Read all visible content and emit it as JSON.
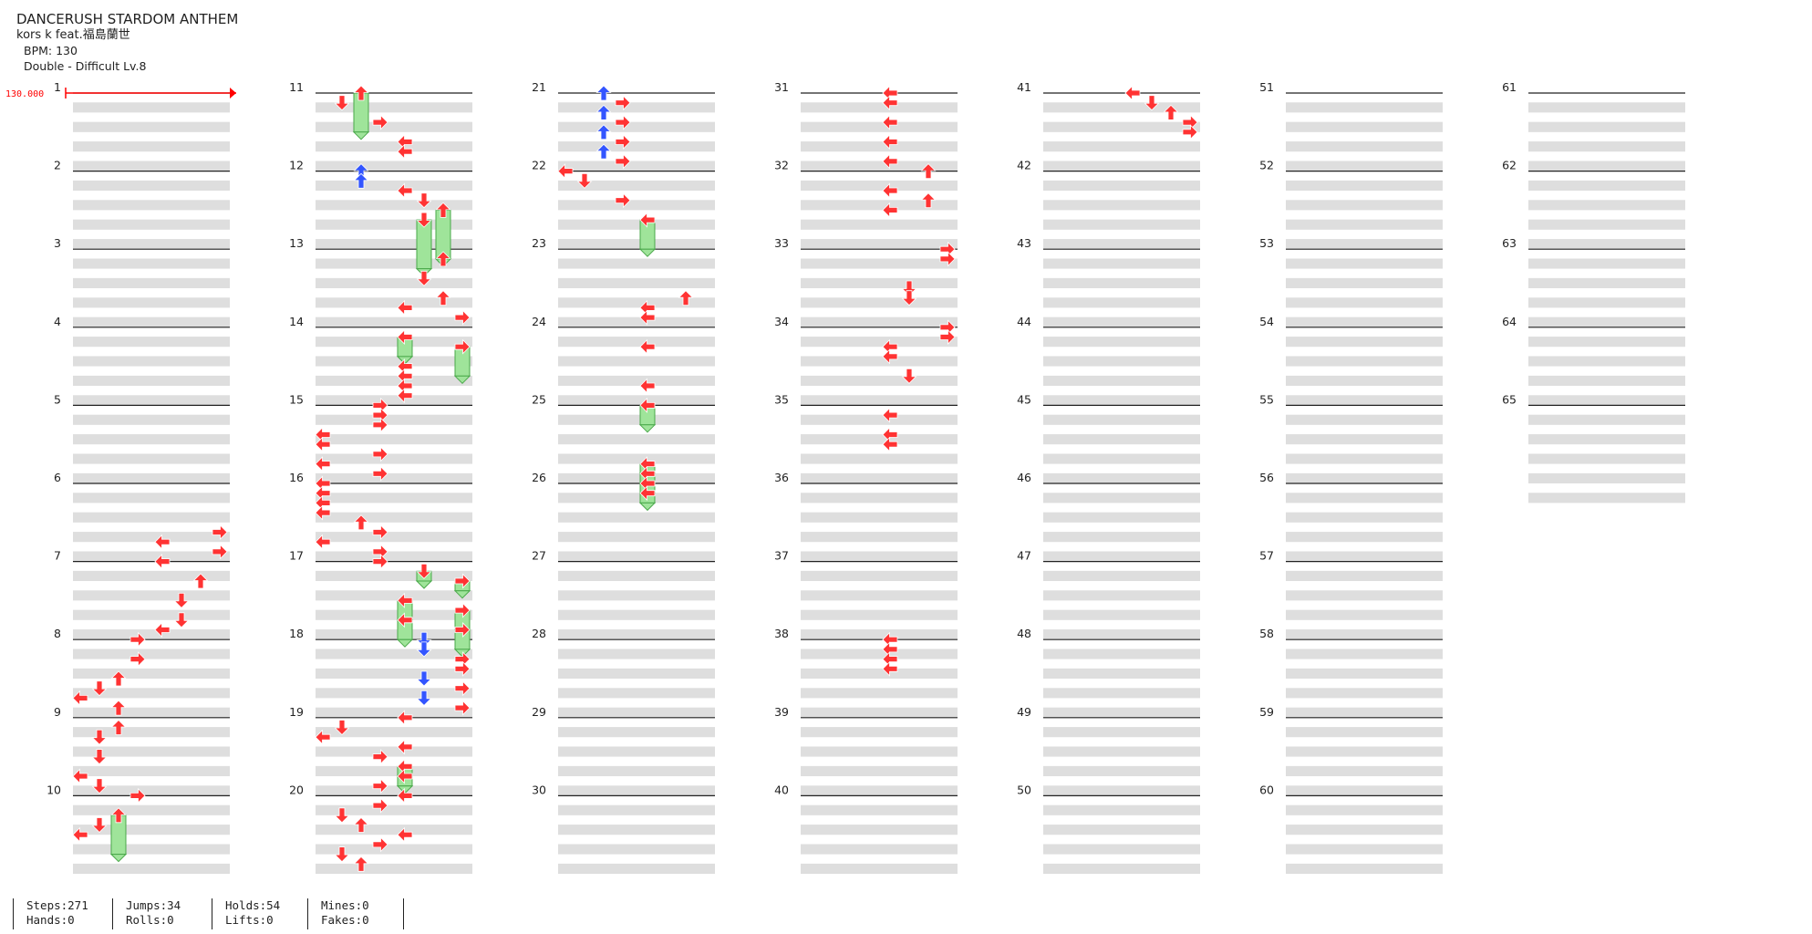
{
  "song": {
    "title": "DANCERUSH STARDOM ANTHEM",
    "artist": "kors k feat.福島蘭世",
    "bpm_label": "BPM: 130",
    "difficulty_label": "Double - Difficult  Lv.8"
  },
  "chart": {
    "bpm_marker": "130.000",
    "measure_labels": [
      "1",
      "2",
      "3",
      "4",
      "5",
      "6",
      "7",
      "8",
      "9",
      "10",
      "11",
      "12",
      "13",
      "14",
      "15",
      "16",
      "17",
      "18",
      "19",
      "20",
      "21",
      "22",
      "23",
      "24",
      "25",
      "26",
      "27",
      "28",
      "29",
      "30",
      "31",
      "32",
      "33",
      "34",
      "35",
      "36",
      "37",
      "38",
      "39",
      "40",
      "41",
      "42",
      "43",
      "44",
      "45",
      "46",
      "47",
      "48",
      "49",
      "50",
      "51",
      "52",
      "53",
      "54",
      "55",
      "56",
      "57",
      "58",
      "59",
      "60",
      "61",
      "62",
      "63",
      "64",
      "65"
    ],
    "colors": {
      "tap": "#ff3333",
      "tap_alt": "#3355ff",
      "hold": "#9fe49a",
      "row_shade": "#dedede"
    }
  },
  "stats": {
    "steps": "Steps:271",
    "hands": "Hands:0",
    "jumps": "Jumps:34",
    "rolls": "Rolls:0",
    "holds": "Holds:54",
    "lifts": "Lifts:0",
    "mines": "Mines:0",
    "fakes": "Fakes:0"
  }
}
